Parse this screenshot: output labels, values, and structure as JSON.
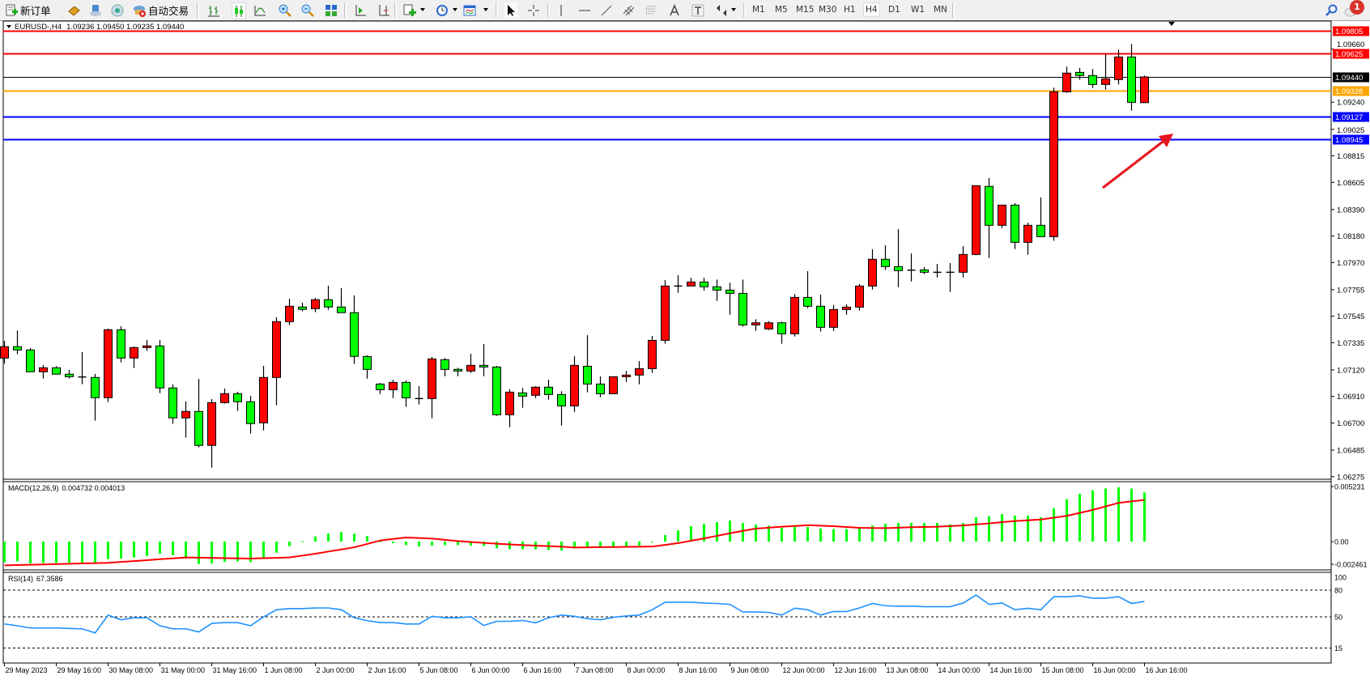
{
  "toolbar": {
    "new_order_label": "新订单",
    "auto_trading_label": "自动交易",
    "timeframes": [
      "M1",
      "M5",
      "M15",
      "M30",
      "H1",
      "H4",
      "D1",
      "W1",
      "MN"
    ],
    "active_timeframe": "H4",
    "notification_count": "1",
    "icons": [
      "new-order-icon",
      "market-watch-icon",
      "data-window-icon",
      "navigator-icon",
      "auto-trading-icon",
      "bar-chart-icon",
      "candlestick-icon",
      "line-chart-icon",
      "zoom-in-icon",
      "zoom-out-icon",
      "tile-windows-icon",
      "auto-scroll-icon",
      "chart-shift-icon",
      "new-chart-icon",
      "periods-icon",
      "indicators-icon",
      "cursor-icon",
      "crosshair-icon",
      "vertical-line-icon",
      "horizontal-line-icon",
      "trendline-icon",
      "equidistant-channel-icon",
      "fibonacci-icon",
      "text-icon",
      "text-label-icon",
      "arrows-icon",
      "search-icon",
      "notifications-icon"
    ]
  },
  "chart": {
    "title": "EURUSD-,H4",
    "ohlc_text": "1.09236 1.09450 1.09235 1.09440",
    "colors": {
      "bull": "#ff0000",
      "bear": "#00ff00",
      "outline": "#000000",
      "macd_hist": "#00ff00",
      "macd_signal": "#ff0000",
      "rsi": "#1e90ff",
      "arrow": "#e8141c"
    },
    "price_ticks": [
      "1.09660",
      "1.09240",
      "1.09025",
      "1.08815",
      "1.08605",
      "1.08390",
      "1.08180",
      "1.07970",
      "1.07755",
      "1.07545",
      "1.07335",
      "1.07120",
      "1.06910",
      "1.06700",
      "1.06485",
      "1.06275"
    ],
    "levels": [
      {
        "price": "1.09805",
        "color": "#ff0000",
        "text_color": "#ffffff"
      },
      {
        "price": "1.09625",
        "color": "#ff0000",
        "text_color": "#ffffff"
      },
      {
        "price": "1.09440",
        "color": "#000000",
        "text_color": "#ffffff"
      },
      {
        "price": "1.09328",
        "color": "#ffa500",
        "text_color": "#ffffff"
      },
      {
        "price": "1.09127",
        "color": "#0000ff",
        "text_color": "#ffffff"
      },
      {
        "price": "1.08945",
        "color": "#0000ff",
        "text_color": "#ffffff"
      }
    ],
    "time_labels": [
      "29 May 2023",
      "29 May 16:00",
      "30 May 08:00",
      "31 May 00:00",
      "31 May 16:00",
      "1 Jun 08:00",
      "2 Jun 00:00",
      "2 Jun 16:00",
      "5 Jun 08:00",
      "6 Jun 00:00",
      "6 Jun 16:00",
      "7 Jun 08:00",
      "8 Jun 00:00",
      "8 Jun 16:00",
      "9 Jun 08:00",
      "12 Jun 00:00",
      "12 Jun 16:00",
      "13 Jun 08:00",
      "14 Jun 00:00",
      "14 Jun 16:00",
      "15 Jun 08:00",
      "16 Jun 00:00",
      "16 Jun 16:00"
    ]
  },
  "chart_data": [
    {
      "type": "candlestick",
      "title": "EURUSD-,H4",
      "ylim": [
        1.06275,
        1.09805
      ],
      "candles_ohlc": [
        [
          1.07214,
          1.07351,
          1.07169,
          1.07304
        ],
        [
          1.07304,
          1.07432,
          1.07244,
          1.07278
        ],
        [
          1.07278,
          1.07293,
          1.07105,
          1.07105
        ],
        [
          1.07105,
          1.07158,
          1.07052,
          1.07137
        ],
        [
          1.07137,
          1.0715,
          1.07086,
          1.07086
        ],
        [
          1.07086,
          1.0712,
          1.07052,
          1.07066
        ],
        [
          1.07064,
          1.07261,
          1.07007,
          1.0706
        ],
        [
          1.0706,
          1.07088,
          1.06718,
          1.069
        ],
        [
          1.069,
          1.07447,
          1.06866,
          1.07438
        ],
        [
          1.07438,
          1.07466,
          1.0718,
          1.07214
        ],
        [
          1.07214,
          1.07306,
          1.07135,
          1.07297
        ],
        [
          1.07297,
          1.07357,
          1.0727,
          1.0731
        ],
        [
          1.0731,
          1.07357,
          1.06936,
          1.06977
        ],
        [
          1.06977,
          1.07005,
          1.06693,
          1.0674
        ],
        [
          1.0674,
          1.06872,
          1.06584,
          1.06791
        ],
        [
          1.06791,
          1.07049,
          1.06507,
          1.06522
        ],
        [
          1.06522,
          1.06889,
          1.06346,
          1.06861
        ],
        [
          1.06861,
          1.06972,
          1.06853,
          1.06932
        ],
        [
          1.06932,
          1.06947,
          1.06795,
          1.06868
        ],
        [
          1.06868,
          1.06915,
          1.06616,
          1.06695
        ],
        [
          1.06701,
          1.07152,
          1.06641,
          1.0706
        ],
        [
          1.0706,
          1.07537,
          1.0684,
          1.07502
        ],
        [
          1.07502,
          1.07684,
          1.07475,
          1.07624
        ],
        [
          1.07618,
          1.07652,
          1.07584,
          1.07599
        ],
        [
          1.07605,
          1.0769,
          1.07577,
          1.07676
        ],
        [
          1.07676,
          1.07787,
          1.07596,
          1.07618
        ],
        [
          1.07618,
          1.07767,
          1.07573,
          1.07573
        ],
        [
          1.07573,
          1.0771,
          1.07167,
          1.07227
        ],
        [
          1.07226,
          1.07235,
          1.07051,
          1.07124
        ],
        [
          1.07008,
          1.07017,
          1.06929,
          1.06963
        ],
        [
          1.06963,
          1.07042,
          1.06897,
          1.07021
        ],
        [
          1.07021,
          1.07036,
          1.06827,
          1.06899
        ],
        [
          1.06893,
          1.06991,
          1.06846,
          1.06893
        ],
        [
          1.06893,
          1.07222,
          1.06737,
          1.07207
        ],
        [
          1.07201,
          1.07214,
          1.0707,
          1.07124
        ],
        [
          1.07124,
          1.07137,
          1.0707,
          1.07111
        ],
        [
          1.07111,
          1.07248,
          1.07096,
          1.07156
        ],
        [
          1.07156,
          1.07325,
          1.0707,
          1.07143
        ],
        [
          1.07143,
          1.07152,
          1.06756,
          1.06765
        ],
        [
          1.06765,
          1.06966,
          1.06666,
          1.06944
        ],
        [
          1.06938,
          1.06978,
          1.0682,
          1.06912
        ],
        [
          1.06919,
          1.06991,
          1.06897,
          1.06983
        ],
        [
          1.06983,
          1.07042,
          1.06884,
          1.06925
        ],
        [
          1.06925,
          1.06951,
          1.06679,
          1.06835
        ],
        [
          1.06835,
          1.07228,
          1.06788,
          1.07156
        ],
        [
          1.07149,
          1.07395,
          1.06942,
          1.07008
        ],
        [
          1.07008,
          1.07068,
          1.06904,
          1.06931
        ],
        [
          1.06931,
          1.07066,
          1.06931,
          1.07066
        ],
        [
          1.07066,
          1.07113,
          1.07025,
          1.07079
        ],
        [
          1.07079,
          1.0719,
          1.07006,
          1.0713
        ],
        [
          1.0713,
          1.07389,
          1.07096,
          1.07354
        ],
        [
          1.07354,
          1.07831,
          1.07327,
          1.07784
        ],
        [
          1.07784,
          1.0787,
          1.07731,
          1.07784
        ],
        [
          1.07784,
          1.0785,
          1.07784,
          1.07816
        ],
        [
          1.07816,
          1.0785,
          1.07748,
          1.07778
        ],
        [
          1.07778,
          1.07835,
          1.07666,
          1.07752
        ],
        [
          1.07752,
          1.0781,
          1.07557,
          1.07726
        ],
        [
          1.07726,
          1.07835,
          1.07463,
          1.07476
        ],
        [
          1.07476,
          1.07521,
          1.07429,
          1.07493
        ],
        [
          1.07444,
          1.07506,
          1.07436,
          1.07493
        ],
        [
          1.07493,
          1.07502,
          1.07327,
          1.07406
        ],
        [
          1.07406,
          1.0772,
          1.07384,
          1.07694
        ],
        [
          1.07694,
          1.07902,
          1.07609,
          1.07624
        ],
        [
          1.07624,
          1.07716,
          1.07423,
          1.07457
        ],
        [
          1.07457,
          1.07632,
          1.07429,
          1.07598
        ],
        [
          1.07598,
          1.07639,
          1.07557,
          1.07617
        ],
        [
          1.07617,
          1.07799,
          1.07589,
          1.07784
        ],
        [
          1.07784,
          1.08075,
          1.07756,
          1.07996
        ],
        [
          1.07996,
          1.08107,
          1.0791,
          1.07938
        ],
        [
          1.07938,
          1.08235,
          1.07775,
          1.07906
        ],
        [
          1.0791,
          1.08042,
          1.0782,
          1.0791
        ],
        [
          1.07912,
          1.07934,
          1.07878,
          1.07893
        ],
        [
          1.07893,
          1.07959,
          1.07852,
          1.07893
        ],
        [
          1.07893,
          1.07966,
          1.07737,
          1.07893
        ],
        [
          1.07893,
          1.081,
          1.07852,
          1.08034
        ],
        [
          1.08034,
          1.08579,
          1.08028,
          1.08579
        ],
        [
          1.08573,
          1.08639,
          1.08006,
          1.08265
        ],
        [
          1.08265,
          1.08425,
          1.08243,
          1.08425
        ],
        [
          1.08425,
          1.0844,
          1.08077,
          1.0813
        ],
        [
          1.0813,
          1.08286,
          1.08032,
          1.08265
        ],
        [
          1.08265,
          1.08485,
          1.08175,
          1.08175
        ],
        [
          1.08175,
          1.09354,
          1.08143,
          1.09322
        ],
        [
          1.09322,
          1.09521,
          1.09314,
          1.0947
        ],
        [
          1.09476,
          1.09511,
          1.09417,
          1.09451
        ],
        [
          1.09451,
          1.09502,
          1.09352,
          1.0938
        ],
        [
          1.0938,
          1.0962,
          1.0934,
          1.09425
        ],
        [
          1.09419,
          1.09656,
          1.0938,
          1.09598
        ],
        [
          1.09598,
          1.09701,
          1.09173,
          1.09239
        ],
        [
          1.09236,
          1.0945,
          1.09235,
          1.0944
        ]
      ]
    },
    {
      "type": "bar",
      "title": "MACD(12,26,9)",
      "values_text": "0.004732 0.004013",
      "ylim": [
        -0.002461,
        0.005231
      ],
      "tick_labels": [
        "0.005231",
        "0.00",
        "-0.002461"
      ],
      "histogram": [
        -0.00198,
        -0.0019,
        -0.00211,
        -0.00206,
        -0.00206,
        -0.00203,
        -0.00203,
        -0.00208,
        -0.00169,
        -0.00164,
        -0.00153,
        -0.00138,
        -0.00117,
        -0.0013,
        -0.00164,
        -0.00216,
        -0.00211,
        -0.00195,
        -0.00192,
        -0.00198,
        -0.00164,
        -0.00107,
        -0.00044,
        3e-05,
        0.00049,
        0.00078,
        0.00091,
        0.00075,
        0.00052,
        3e-05,
        -0.00016,
        -0.00034,
        -0.00047,
        -0.00039,
        -0.00034,
        -0.00034,
        -0.00039,
        -0.00042,
        -0.00065,
        -0.00073,
        -0.00073,
        -0.00075,
        -0.00081,
        -0.00086,
        -0.0006,
        -0.0006,
        -0.00058,
        -0.00058,
        -0.00055,
        -0.0004,
        -3e-05,
        0.00062,
        0.00109,
        0.00148,
        0.00172,
        0.00187,
        0.00203,
        0.00179,
        0.00164,
        0.00153,
        0.00133,
        0.0014,
        0.0014,
        0.00125,
        0.0012,
        0.0012,
        0.0013,
        0.00156,
        0.00172,
        0.00179,
        0.00179,
        0.00179,
        0.00179,
        0.00166,
        0.00179,
        0.00234,
        0.00244,
        0.00265,
        0.0025,
        0.0025,
        0.00234,
        0.0032,
        0.00408,
        0.0046,
        0.00494,
        0.00512,
        0.00523,
        0.0051,
        0.004732
      ],
      "signal": [
        -0.00229,
        -0.00226,
        -0.00223,
        -0.0022,
        -0.00217,
        -0.00214,
        -0.00211,
        -0.00208,
        -0.00205,
        -0.00196,
        -0.00188,
        -0.00179,
        -0.0017,
        -0.00162,
        -0.00153,
        -0.00155,
        -0.00157,
        -0.0016,
        -0.00162,
        -0.00164,
        -0.0016,
        -0.00157,
        -0.00153,
        -0.00135,
        -0.00117,
        -0.00096,
        -0.00076,
        -0.00055,
        -0.00023,
        0.0001,
        0.00025,
        0.00039,
        0.00034,
        0.00029,
        0.00017,
        5e-05,
        -4e-05,
        -0.00013,
        -0.0002,
        -0.00027,
        -0.00034,
        -0.00039,
        -0.00044,
        -0.00049,
        -0.00058,
        -0.00056,
        -0.00054,
        -0.00053,
        -0.00051,
        -0.0005,
        -0.00048,
        -0.00032,
        -0.00015,
        8e-05,
        0.0003,
        0.00055,
        0.0008,
        0.00103,
        0.00125,
        0.00134,
        0.00143,
        0.0015,
        0.00158,
        0.00153,
        0.00148,
        0.0014,
        0.00133,
        0.00131,
        0.0013,
        0.00134,
        0.00138,
        0.0014,
        0.00143,
        0.00149,
        0.00155,
        0.00165,
        0.00175,
        0.00187,
        0.00198,
        0.00205,
        0.00213,
        0.0023,
        0.00248,
        0.00276,
        0.00305,
        0.00339,
        0.00373,
        0.00387,
        0.004013
      ]
    },
    {
      "type": "line",
      "title": "RSI(14)",
      "value_text": "67.3586",
      "ylim": [
        0,
        100
      ],
      "tick_labels": [
        "100",
        "80",
        "50",
        "15"
      ],
      "levels": [
        80,
        50,
        15
      ],
      "values": [
        42,
        40,
        37.5,
        37.5,
        37.5,
        37,
        36.6,
        32,
        52,
        46.7,
        49,
        49,
        40,
        36.6,
        36.6,
        33,
        42.7,
        43.6,
        43.6,
        40,
        50,
        58,
        59.3,
        59.3,
        60,
        60,
        58,
        49,
        45.8,
        43.6,
        43.6,
        42,
        42,
        50.6,
        49,
        49,
        50,
        40.3,
        45,
        45,
        46,
        43.3,
        49,
        52,
        50.6,
        48,
        46.7,
        49.5,
        51,
        52,
        58,
        66.4,
        66.4,
        66.4,
        65.5,
        65,
        64,
        55.5,
        55.5,
        55,
        52,
        59.7,
        58,
        52,
        56,
        56,
        60,
        65,
        62.5,
        62,
        62,
        61.4,
        61.4,
        61.4,
        65.5,
        74.5,
        64,
        65.5,
        58,
        59.6,
        58,
        72.7,
        72.7,
        73.6,
        71,
        71,
        72.7,
        65,
        67.36
      ]
    }
  ]
}
